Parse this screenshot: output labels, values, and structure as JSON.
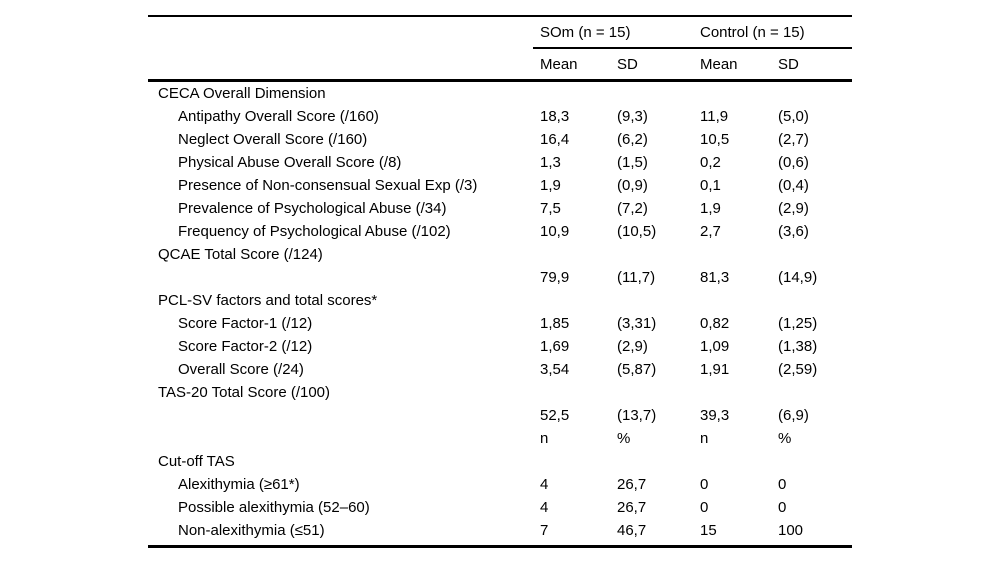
{
  "page": {
    "background": "#ffffff",
    "text_color": "#000000",
    "rule_color": "#000000"
  },
  "table": {
    "groups": [
      {
        "label": "SOm (n = 15)"
      },
      {
        "label": "Control (n = 15)"
      }
    ],
    "column_headers": [
      "Mean",
      "SD",
      "Mean",
      "SD"
    ],
    "rows": [
      {
        "label": "CECA Overall Dimension",
        "indent": false,
        "cells": [
          "",
          "",
          "",
          ""
        ]
      },
      {
        "label": "Antipathy Overall Score (/160)",
        "indent": true,
        "cells": [
          "18,3",
          "(9,3)",
          "11,9",
          "(5,0)"
        ]
      },
      {
        "label": "Neglect Overall Score (/160)",
        "indent": true,
        "cells": [
          "16,4",
          "(6,2)",
          "10,5",
          "(2,7)"
        ]
      },
      {
        "label": "Physical Abuse Overall Score (/8)",
        "indent": true,
        "cells": [
          "1,3",
          "(1,5)",
          "0,2",
          "(0,6)"
        ]
      },
      {
        "label": "Presence of Non-consensual Sexual Exp (/3)",
        "indent": true,
        "cells": [
          "1,9",
          "(0,9)",
          "0,1",
          "(0,4)"
        ]
      },
      {
        "label": "Prevalence of Psychological Abuse (/34)",
        "indent": true,
        "cells": [
          "7,5",
          "(7,2)",
          "1,9",
          "(2,9)"
        ]
      },
      {
        "label": "Frequency of Psychological Abuse (/102)",
        "indent": true,
        "cells": [
          "10,9",
          "(10,5)",
          "2,7",
          "(3,6)"
        ]
      },
      {
        "label": "QCAE Total Score (/124)",
        "indent": false,
        "cells": [
          "",
          "",
          "",
          ""
        ]
      },
      {
        "label": "",
        "indent": false,
        "cells": [
          "79,9",
          "(11,7)",
          "81,3",
          "(14,9)"
        ]
      },
      {
        "label": "PCL-SV factors and total scores*",
        "indent": false,
        "cells": [
          "",
          "",
          "",
          ""
        ]
      },
      {
        "label": "Score Factor-1 (/12)",
        "indent": true,
        "cells": [
          "1,85",
          "(3,31)",
          "0,82",
          "(1,25)"
        ]
      },
      {
        "label": "Score Factor-2 (/12)",
        "indent": true,
        "cells": [
          "1,69",
          "(2,9)",
          "1,09",
          "(1,38)"
        ]
      },
      {
        "label": "Overall Score (/24)",
        "indent": true,
        "cells": [
          "3,54",
          "(5,87)",
          "1,91",
          "(2,59)"
        ]
      },
      {
        "label": "TAS-20 Total Score (/100)",
        "indent": false,
        "cells": [
          "",
          "",
          "",
          ""
        ]
      },
      {
        "label": "",
        "indent": false,
        "cells": [
          "52,5",
          "(13,7)",
          "39,3",
          "(6,9)"
        ]
      },
      {
        "label": "",
        "indent": false,
        "cells": [
          "n",
          "%",
          "n",
          "%"
        ]
      },
      {
        "label": "Cut-off TAS",
        "indent": false,
        "cells": [
          "",
          "",
          "",
          ""
        ]
      },
      {
        "label": "Alexithymia (≥61*)",
        "indent": true,
        "cells": [
          "4",
          "26,7",
          "0",
          "0"
        ]
      },
      {
        "label": "Possible alexithymia (52–60)",
        "indent": true,
        "cells": [
          "4",
          "26,7",
          "0",
          "0"
        ]
      },
      {
        "label": "Non-alexithymia (≤51)",
        "indent": true,
        "cells": [
          "7",
          "46,7",
          "15",
          "100"
        ]
      }
    ]
  }
}
